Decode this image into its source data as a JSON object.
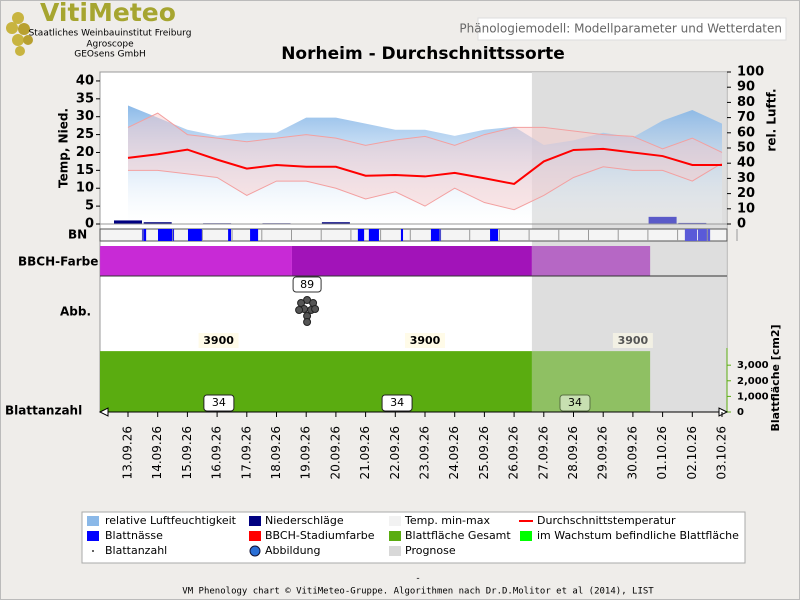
{
  "header": {
    "logo": "VitiMeteo",
    "org": [
      "Staatliches Weinbauinstitut Freiburg",
      "Agroscope",
      "GEOsens GmbH"
    ],
    "tab": "Phänologiemodell: Modellparameter und Wetterdaten"
  },
  "chart_data": {
    "type": "line",
    "title": "Norheim - Durchschnittssorte",
    "categories": [
      "13.09.26",
      "14.09.26",
      "15.09.26",
      "16.09.26",
      "17.09.26",
      "18.09.26",
      "19.09.26",
      "20.09.26",
      "21.09.26",
      "22.09.26",
      "23.09.26",
      "24.09.26",
      "25.09.26",
      "26.09.26",
      "27.09.26",
      "28.09.26",
      "29.09.26",
      "30.09.26",
      "01.10.26",
      "02.10.26",
      "03.10.26"
    ],
    "ylabel": "Temp, Nied.",
    "y2label": "rel. Luftf.",
    "ylim": [
      0,
      42.5
    ],
    "yticks": [
      0,
      5,
      10,
      15,
      20,
      25,
      30,
      35,
      40
    ],
    "y2lim": [
      0,
      100
    ],
    "y2ticks": [
      0,
      10,
      20,
      30,
      40,
      50,
      60,
      70,
      80,
      90,
      100
    ],
    "series": [
      {
        "name": "relative Luftfeuchtigkeit",
        "color": "#8ab8e8",
        "axis": "y2",
        "values": [
          78,
          70,
          62,
          58,
          60,
          60,
          70,
          70,
          66,
          62,
          62,
          58,
          62,
          64,
          52,
          55,
          60,
          57,
          68,
          75,
          66
        ]
      },
      {
        "name": "Niederschläge",
        "color": "#000080",
        "values": [
          1,
          0.5,
          0,
          0.2,
          0,
          0.2,
          0,
          0.5,
          0,
          0,
          0,
          0,
          0,
          0,
          0,
          0,
          0,
          0,
          2,
          0.3,
          0
        ]
      },
      {
        "name": "Temp. min-max",
        "color": "#f3a0a0",
        "max": [
          27,
          31,
          25,
          24,
          23,
          24,
          25,
          24,
          22,
          23.5,
          24.5,
          22,
          25,
          27,
          27,
          26,
          25,
          24.5,
          21,
          24,
          20
        ],
        "min": [
          15,
          15,
          14,
          13,
          8,
          12,
          12,
          10,
          7,
          9,
          5,
          10,
          6,
          4,
          8,
          13,
          16,
          15,
          15,
          12,
          17
        ]
      },
      {
        "name": "Durchschnittstemperatur",
        "color": "#ff0000",
        "values": [
          18.5,
          19.5,
          20.8,
          18,
          15.5,
          16.5,
          16,
          16,
          13.5,
          13.7,
          13.3,
          14.3,
          12.8,
          11.2,
          17.5,
          20.7,
          21,
          20,
          19,
          16.5,
          16.5
        ]
      }
    ],
    "prognose": {
      "name": "Prognose",
      "color": "#d8d8d8",
      "start": 13.6
    },
    "bn": {
      "label": "BN",
      "name": "Blattnässe",
      "color": "#0000ff",
      "intervals": [
        [
          0.47,
          0.61
        ],
        [
          1.01,
          1.55
        ],
        [
          2.02,
          2.49
        ],
        [
          3.37,
          3.47
        ],
        [
          4.11,
          4.38
        ],
        [
          7.74,
          7.95
        ],
        [
          8.11,
          8.45
        ],
        [
          9.19,
          9.26
        ],
        [
          10.2,
          10.54
        ],
        [
          12.19,
          12.46
        ],
        [
          18.75,
          19.16
        ],
        [
          19.19,
          19.6
        ]
      ]
    },
    "bbch": {
      "label": "BBCH-Farbe",
      "name": "BBCH-Stadiumfarbe",
      "color": "#ff0000",
      "segments": [
        {
          "start": -0.94,
          "end": 5.52,
          "color": "#c82ad6"
        },
        {
          "start": 5.52,
          "end": 13.6,
          "color": "#a213b9"
        },
        {
          "start": 13.6,
          "end": 17.58,
          "color": "#b667c5"
        }
      ]
    },
    "abbildung": {
      "label": "Abb.",
      "name": "Abbildung",
      "stage": 89,
      "at": 6.03
    },
    "blattflaeche": {
      "name": "Blattfläche Gesamt",
      "color": "#5aac10",
      "growing_name": "im Wachstum befindliche Blattfläche",
      "growing_color": "#00ff00",
      "ylabel": "Blattfläche [cm2]",
      "ylim": [
        0,
        4100
      ],
      "yticks": [
        0,
        {
          "value": 1000,
          "label": "1,000"
        },
        {
          "value": 2000,
          "label": "2,000"
        },
        {
          "value": 3000,
          "label": "3,000"
        }
      ],
      "end": 17.58,
      "values": [
        3900,
        3900,
        3900
      ],
      "at": [
        3.05,
        10.0,
        17.0
      ]
    },
    "blattanzahl": {
      "label": "Blattanzahl",
      "name": "Blattanzahl",
      "values": [
        34,
        34,
        34
      ],
      "at": [
        3.06,
        9.06,
        15.05
      ]
    }
  },
  "footer": {
    "dash": "-",
    "text": "VM Phenology chart © VitiMeteo-Gruppe. Algorithmen nach Dr.D.Molitor et al (2014), LIST"
  }
}
